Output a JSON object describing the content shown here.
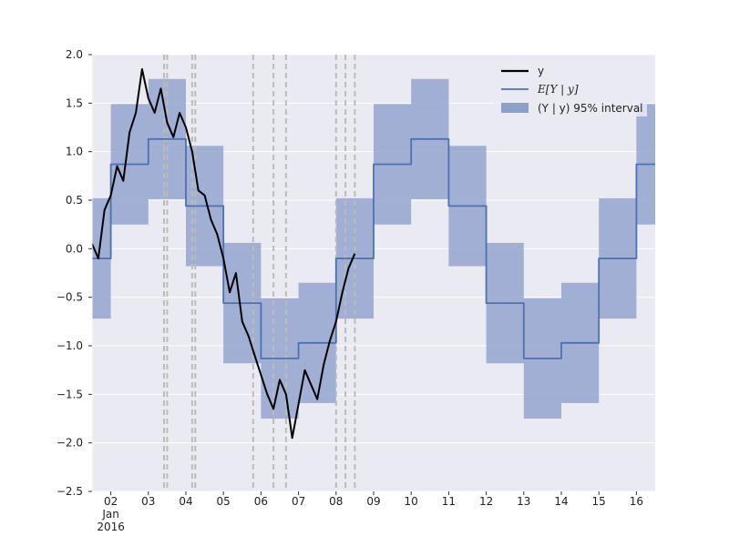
{
  "chart_data": {
    "type": "line",
    "x_axis": {
      "start_date": "2016-01-01T12:00",
      "end_date": "2016-01-16T12:00",
      "tick_labels": [
        "02",
        "03",
        "04",
        "05",
        "06",
        "07",
        "08",
        "09",
        "10",
        "11",
        "12",
        "13",
        "14",
        "15",
        "16"
      ],
      "month_label": "Jan",
      "year_label": "2016"
    },
    "y_axis": {
      "ylim": [
        -2.5,
        2.0
      ],
      "ticks": [
        2.0,
        1.5,
        1.0,
        0.5,
        0.0,
        -0.5,
        -1.0,
        -1.5,
        -2.0,
        -2.5
      ],
      "tick_labels": [
        "2.0",
        "1.5",
        "1.0",
        "0.5",
        "0.0",
        "−0.5",
        "−1.0",
        "−1.5",
        "−2.0",
        "−2.5"
      ]
    },
    "grid": true,
    "background_color": "#eaeaf2",
    "legend": {
      "placement": "top-right",
      "entries": [
        {
          "label": "y",
          "kind": "line",
          "color": "#000000"
        },
        {
          "label": "E[Y | y]",
          "kind": "line",
          "color": "#4c72b0"
        },
        {
          "label": "(Y | y) 95% interval",
          "kind": "band",
          "color": "#8da0cb"
        }
      ]
    },
    "series": [
      {
        "name": "E[Y | y]",
        "kind": "step",
        "color": "#4c72b0",
        "x": [
          "2016-01-01T12:00",
          "2016-01-02T00:00",
          "2016-01-02T12:00",
          "2016-01-03T00:00",
          "2016-01-03T12:00",
          "2016-01-04T00:00",
          "2016-01-04T12:00",
          "2016-01-05T00:00",
          "2016-01-05T12:00",
          "2016-01-06T00:00",
          "2016-01-06T12:00",
          "2016-01-07T00:00",
          "2016-01-07T12:00",
          "2016-01-08T00:00",
          "2016-01-08T12:00",
          "2016-01-09T00:00",
          "2016-01-09T12:00",
          "2016-01-10T00:00",
          "2016-01-10T12:00",
          "2016-01-11T00:00",
          "2016-01-11T12:00",
          "2016-01-12T00:00",
          "2016-01-12T12:00",
          "2016-01-13T00:00",
          "2016-01-13T12:00",
          "2016-01-14T00:00",
          "2016-01-14T12:00",
          "2016-01-15T00:00",
          "2016-01-15T12:00",
          "2016-01-16T00:00",
          "2016-01-16T12:00"
        ],
        "values": [
          -0.1,
          0.87,
          0.87,
          1.13,
          1.13,
          0.44,
          0.44,
          -0.56,
          -0.56,
          -1.13,
          -1.13,
          -0.97,
          -0.97,
          -0.1,
          -0.1,
          0.87,
          0.87,
          1.13,
          1.13,
          0.44,
          0.44,
          -0.56,
          -0.56,
          -1.13,
          -1.13,
          -0.97,
          -0.97,
          -0.1,
          -0.1,
          0.87,
          0.87
        ]
      },
      {
        "name": "y",
        "kind": "line",
        "color": "#000000",
        "x": [
          "2016-01-01T12:00",
          "2016-01-01T16:00",
          "2016-01-01T20:00",
          "2016-01-02T00:00",
          "2016-01-02T04:00",
          "2016-01-02T08:00",
          "2016-01-02T12:00",
          "2016-01-02T16:00",
          "2016-01-02T20:00",
          "2016-01-03T00:00",
          "2016-01-03T04:00",
          "2016-01-03T08:00",
          "2016-01-03T12:00",
          "2016-01-03T16:00",
          "2016-01-03T20:00",
          "2016-01-04T00:00",
          "2016-01-04T04:00",
          "2016-01-04T08:00",
          "2016-01-04T12:00",
          "2016-01-04T16:00",
          "2016-01-04T20:00",
          "2016-01-05T00:00",
          "2016-01-05T04:00",
          "2016-01-05T08:00",
          "2016-01-05T12:00",
          "2016-01-05T16:00",
          "2016-01-05T20:00",
          "2016-01-06T00:00",
          "2016-01-06T04:00",
          "2016-01-06T08:00",
          "2016-01-06T12:00",
          "2016-01-06T16:00",
          "2016-01-06T20:00",
          "2016-01-07T00:00",
          "2016-01-07T04:00",
          "2016-01-07T08:00",
          "2016-01-07T12:00",
          "2016-01-07T16:00",
          "2016-01-07T20:00",
          "2016-01-08T00:00",
          "2016-01-08T04:00",
          "2016-01-08T08:00",
          "2016-01-08T12:00"
        ],
        "values": [
          0.05,
          -0.1,
          0.4,
          0.55,
          0.85,
          0.7,
          1.2,
          1.4,
          1.85,
          1.55,
          1.4,
          1.65,
          1.3,
          1.15,
          1.4,
          1.25,
          1.0,
          0.6,
          0.55,
          0.3,
          0.15,
          -0.1,
          -0.45,
          -0.25,
          -0.75,
          -0.9,
          -1.1,
          -1.3,
          -1.5,
          -1.65,
          -1.35,
          -1.5,
          -1.95,
          -1.6,
          -1.25,
          -1.4,
          -1.55,
          -1.2,
          -0.95,
          -0.75,
          -0.45,
          -0.2,
          -0.05
        ]
      }
    ],
    "interval_band": {
      "name": "(Y | y) 95% interval",
      "color": "#8da0cb",
      "half_width": 0.62
    },
    "event_markers": {
      "style": "dashed",
      "color": "#bbbbbb",
      "x": [
        "2016-01-03T10:00",
        "2016-01-03T12:00",
        "2016-01-04T04:00",
        "2016-01-04T06:00",
        "2016-01-05T19:00",
        "2016-01-06T08:00",
        "2016-01-06T16:00",
        "2016-01-08T00:00",
        "2016-01-08T06:00",
        "2016-01-08T12:00"
      ]
    }
  }
}
